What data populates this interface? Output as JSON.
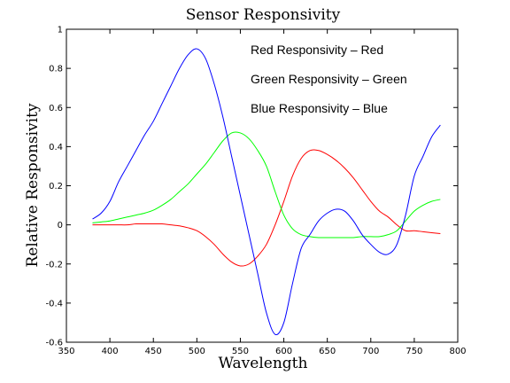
{
  "chart_data": {
    "type": "line",
    "title": "Sensor Responsivity",
    "xlabel": "Wavelength",
    "ylabel": "Relative Responsivity",
    "xlim": [
      350,
      800
    ],
    "ylim": [
      -0.6,
      1
    ],
    "xticks": [
      350,
      400,
      450,
      500,
      550,
      600,
      650,
      700,
      750,
      800
    ],
    "yticks": [
      -0.6,
      -0.4,
      -0.2,
      0,
      0.2,
      0.4,
      0.6,
      0.8,
      1
    ],
    "grid": false,
    "annotations": [
      "Red Responsivity – Red",
      "Green Responsivity – Green",
      "Blue Responsivity – Blue"
    ],
    "colors": {
      "red": "#ff0000",
      "green": "#00ff00",
      "blue": "#0000ff"
    },
    "x": [
      380,
      390,
      400,
      410,
      420,
      430,
      440,
      450,
      460,
      470,
      480,
      490,
      500,
      510,
      520,
      530,
      540,
      550,
      560,
      570,
      580,
      590,
      600,
      610,
      620,
      630,
      640,
      650,
      660,
      670,
      680,
      690,
      700,
      710,
      720,
      730,
      740,
      750,
      760,
      770,
      780
    ],
    "series": [
      {
        "color": "red",
        "values": [
          0.0,
          0.0,
          0.0,
          0.0,
          0.0,
          0.005,
          0.005,
          0.005,
          0.005,
          0.0,
          -0.005,
          -0.015,
          -0.03,
          -0.06,
          -0.1,
          -0.15,
          -0.19,
          -0.21,
          -0.2,
          -0.16,
          -0.1,
          0.0,
          0.12,
          0.25,
          0.34,
          0.38,
          0.38,
          0.36,
          0.33,
          0.29,
          0.24,
          0.18,
          0.12,
          0.07,
          0.04,
          0.0,
          -0.03,
          -0.03,
          -0.035,
          -0.04,
          -0.045
        ]
      },
      {
        "color": "green",
        "values": [
          0.01,
          0.015,
          0.02,
          0.03,
          0.04,
          0.05,
          0.06,
          0.075,
          0.1,
          0.13,
          0.17,
          0.21,
          0.26,
          0.31,
          0.37,
          0.43,
          0.47,
          0.47,
          0.44,
          0.38,
          0.3,
          0.17,
          0.05,
          -0.02,
          -0.05,
          -0.06,
          -0.065,
          -0.065,
          -0.065,
          -0.065,
          -0.065,
          -0.06,
          -0.06,
          -0.06,
          -0.05,
          -0.03,
          0.02,
          0.07,
          0.1,
          0.12,
          0.13
        ]
      },
      {
        "color": "blue",
        "values": [
          0.03,
          0.06,
          0.12,
          0.22,
          0.3,
          0.38,
          0.46,
          0.53,
          0.62,
          0.71,
          0.8,
          0.87,
          0.9,
          0.85,
          0.72,
          0.55,
          0.35,
          0.15,
          -0.05,
          -0.25,
          -0.45,
          -0.56,
          -0.5,
          -0.3,
          -0.12,
          -0.05,
          0.02,
          0.06,
          0.08,
          0.07,
          0.02,
          -0.05,
          -0.1,
          -0.14,
          -0.15,
          -0.1,
          0.05,
          0.25,
          0.35,
          0.45,
          0.51
        ]
      }
    ]
  }
}
